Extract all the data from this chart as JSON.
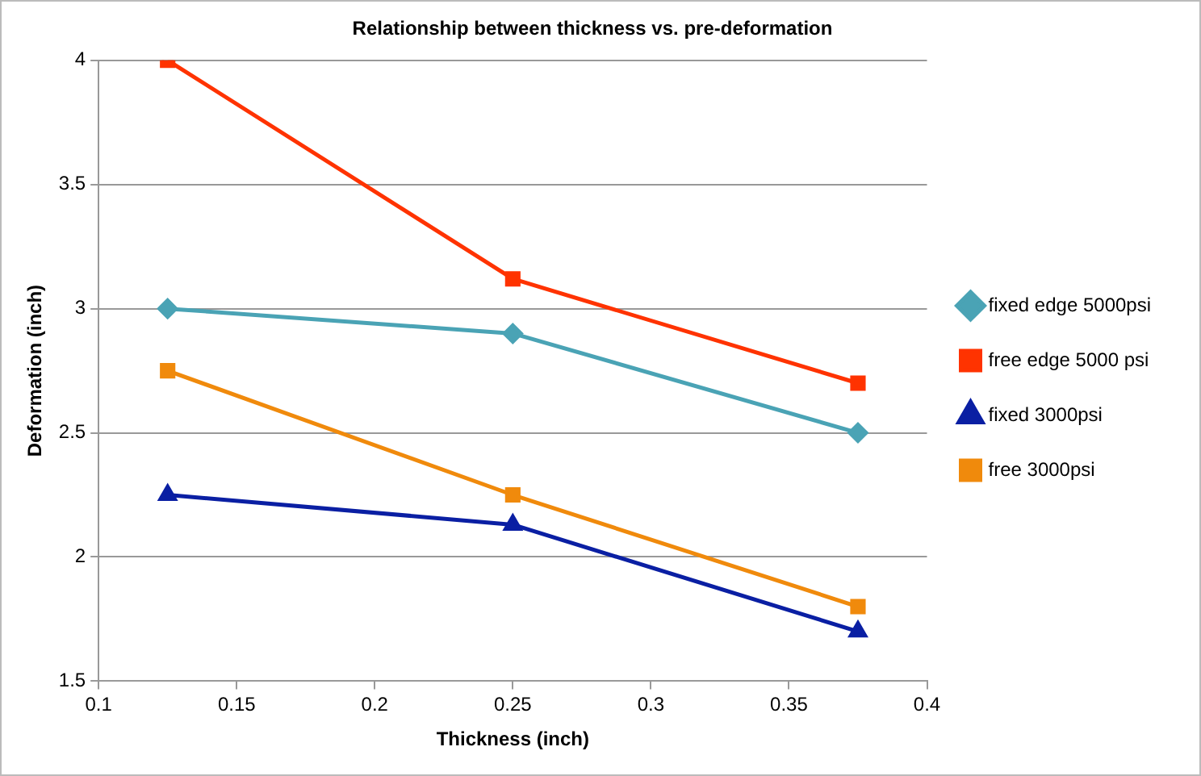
{
  "chart_data": {
    "type": "line",
    "title": "Relationship between thickness vs. pre-deformation",
    "xlabel": "Thickness (inch)",
    "ylabel": "Deformation (inch)",
    "x": [
      0.125,
      0.25,
      0.375
    ],
    "series": [
      {
        "name": "fixed edge 5000psi",
        "color": "#4aa3b5",
        "marker": "diamond",
        "values": [
          3.0,
          2.9,
          2.5
        ]
      },
      {
        "name": "free edge 5000 psi",
        "color": "#ff3300",
        "marker": "square",
        "values": [
          4.0,
          3.12,
          2.7
        ]
      },
      {
        "name": "fixed 3000psi",
        "color": "#0a1fa3",
        "marker": "triangle",
        "values": [
          2.25,
          2.13,
          1.7
        ]
      },
      {
        "name": "free 3000psi",
        "color": "#f08a0c",
        "marker": "square",
        "values": [
          2.75,
          2.25,
          1.8
        ]
      }
    ],
    "xlim": [
      0.1,
      0.4
    ],
    "xticks": [
      0.1,
      0.15,
      0.2,
      0.25,
      0.3,
      0.35,
      0.4
    ],
    "ylim": [
      1.5,
      4
    ],
    "yticks": [
      1.5,
      2,
      2.5,
      3,
      3.5,
      4
    ],
    "grid": "y",
    "legend": "right"
  }
}
